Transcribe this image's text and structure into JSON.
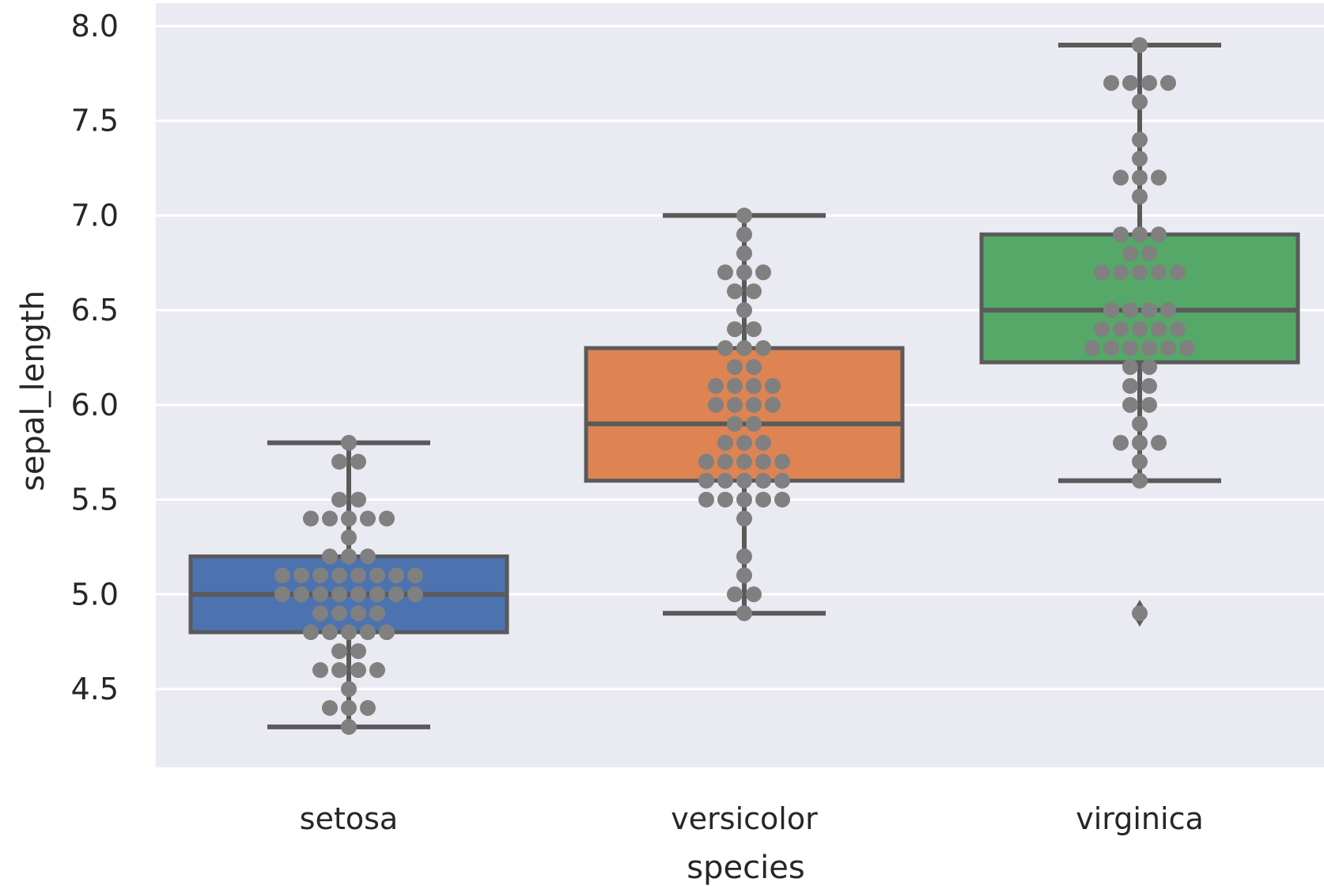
{
  "chart_data": {
    "type": "box",
    "overlay": "swarm",
    "title": "",
    "xlabel": "species",
    "ylabel": "sepal_length",
    "categories": [
      "setosa",
      "versicolor",
      "virginica"
    ],
    "ylim": [
      4.1,
      8.05
    ],
    "yticks": [
      4.5,
      5.0,
      5.5,
      6.0,
      6.5,
      7.0,
      7.5,
      8.0
    ],
    "ytick_labels": [
      "4.5",
      "5.0",
      "5.5",
      "6.0",
      "6.5",
      "7.0",
      "7.5",
      "8.0"
    ],
    "grid": true,
    "colors": {
      "background": "#EAEAF2",
      "grid": "#FFFFFF",
      "line": "#5A5A5A",
      "swarm_point": "#808080",
      "boxes": [
        "#4C72B0",
        "#DD8452",
        "#55A868"
      ]
    },
    "boxes": [
      {
        "category": "setosa",
        "whisker_low": 4.3,
        "q1": 4.8,
        "median": 5.0,
        "q3": 5.2,
        "whisker_high": 5.8,
        "outliers": []
      },
      {
        "category": "versicolor",
        "whisker_low": 4.9,
        "q1": 5.6,
        "median": 5.9,
        "q3": 6.3,
        "whisker_high": 7.0,
        "outliers": []
      },
      {
        "category": "virginica",
        "whisker_low": 5.6,
        "q1": 6.225,
        "median": 6.5,
        "q3": 6.9,
        "whisker_high": 7.9,
        "outliers": [
          4.9
        ]
      }
    ],
    "swarm": [
      {
        "category": "setosa",
        "values": [
          5.1,
          4.9,
          4.7,
          4.6,
          5.0,
          5.4,
          4.6,
          5.0,
          4.4,
          4.9,
          5.4,
          4.8,
          4.8,
          4.3,
          5.8,
          5.7,
          5.4,
          5.1,
          5.7,
          5.1,
          5.4,
          5.1,
          4.6,
          5.1,
          4.8,
          5.0,
          5.0,
          5.2,
          5.2,
          4.7,
          4.8,
          5.4,
          5.2,
          5.5,
          4.9,
          5.0,
          5.5,
          4.9,
          4.4,
          5.1,
          5.0,
          4.5,
          4.4,
          5.0,
          5.1,
          4.8,
          5.1,
          4.6,
          5.3,
          5.0
        ]
      },
      {
        "category": "versicolor",
        "values": [
          7.0,
          6.4,
          6.9,
          5.5,
          6.5,
          5.7,
          6.3,
          4.9,
          6.6,
          5.2,
          5.0,
          5.9,
          6.0,
          6.1,
          5.6,
          6.7,
          5.6,
          5.8,
          6.2,
          5.6,
          5.9,
          6.1,
          6.3,
          6.1,
          6.4,
          6.6,
          6.8,
          6.7,
          6.0,
          5.7,
          5.5,
          5.5,
          5.8,
          6.0,
          5.4,
          6.0,
          6.7,
          6.3,
          5.6,
          5.5,
          5.5,
          6.1,
          5.8,
          5.0,
          5.6,
          5.7,
          5.7,
          6.2,
          5.1,
          5.7
        ]
      },
      {
        "category": "virginica",
        "values": [
          6.3,
          5.8,
          7.1,
          6.3,
          6.5,
          7.6,
          4.9,
          7.3,
          6.7,
          7.2,
          6.5,
          6.4,
          6.8,
          5.7,
          5.8,
          6.4,
          6.5,
          7.7,
          7.7,
          6.0,
          6.9,
          5.6,
          7.7,
          6.3,
          6.7,
          7.2,
          6.2,
          6.1,
          6.4,
          7.2,
          7.4,
          7.9,
          6.4,
          6.3,
          6.1,
          7.7,
          6.3,
          6.4,
          6.0,
          6.9,
          6.7,
          6.9,
          5.8,
          6.8,
          6.7,
          6.7,
          6.3,
          6.5,
          6.2,
          5.9
        ]
      }
    ]
  }
}
